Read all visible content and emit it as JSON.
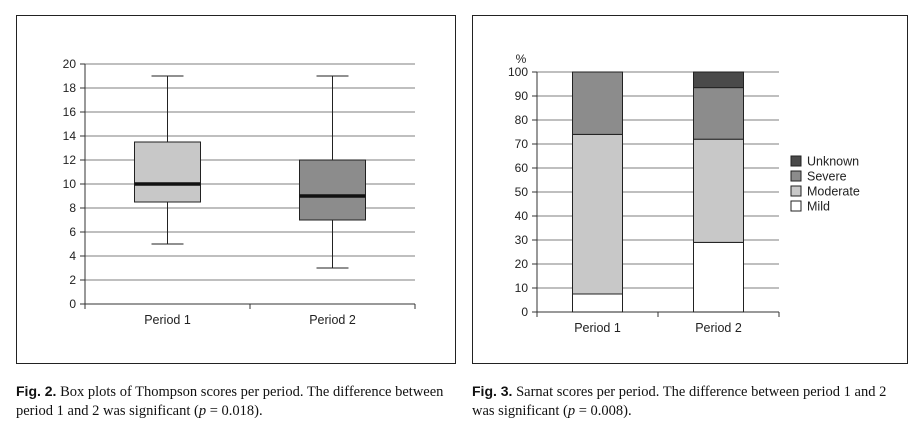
{
  "figures": [
    {
      "fig_label": "Fig. 2.",
      "caption_a": " Box plots of Thompson scores per period. The difference between period 1 and 2 was significant (",
      "caption_p": "p",
      "caption_b": " = 0.018)."
    },
    {
      "fig_label": "Fig. 3.",
      "caption_a": " Sarnat scores per period. The difference between period 1 and 2 was significant (",
      "caption_p": "p",
      "caption_b": " = 0.008)."
    }
  ],
  "chart_data": [
    {
      "type": "box",
      "categories": [
        "Period 1",
        "Period 2"
      ],
      "boxes": [
        {
          "category": "Period 1",
          "min": 5,
          "q1": 8.5,
          "median": 10,
          "q3": 13.5,
          "max": 19,
          "color": "#c8c8c8"
        },
        {
          "category": "Period 2",
          "min": 3,
          "q1": 7,
          "median": 9,
          "q3": 12,
          "max": 19,
          "color": "#8c8c8c"
        }
      ],
      "ylim": [
        0,
        20
      ],
      "yticks": [
        0,
        2,
        4,
        6,
        8,
        10,
        12,
        14,
        16,
        18,
        20
      ],
      "grid": true,
      "xlabel": "",
      "ylabel": ""
    },
    {
      "type": "bar",
      "stacked": true,
      "categories": [
        "Period 1",
        "Period 2"
      ],
      "ylabel": "%",
      "ylim": [
        0,
        100
      ],
      "yticks": [
        0,
        10,
        20,
        30,
        40,
        50,
        60,
        70,
        80,
        90,
        100
      ],
      "grid": true,
      "legend_position": "right",
      "series": [
        {
          "name": "Mild",
          "values": [
            7.5,
            29
          ],
          "color": "#ffffff"
        },
        {
          "name": "Moderate",
          "values": [
            66.5,
            43
          ],
          "color": "#c8c8c8"
        },
        {
          "name": "Severe",
          "values": [
            26,
            21.5
          ],
          "color": "#8c8c8c"
        },
        {
          "name": "Unknown",
          "values": [
            0,
            6.5
          ],
          "color": "#4a4a4a"
        }
      ],
      "legend_order": [
        "Unknown",
        "Severe",
        "Moderate",
        "Mild"
      ]
    }
  ]
}
